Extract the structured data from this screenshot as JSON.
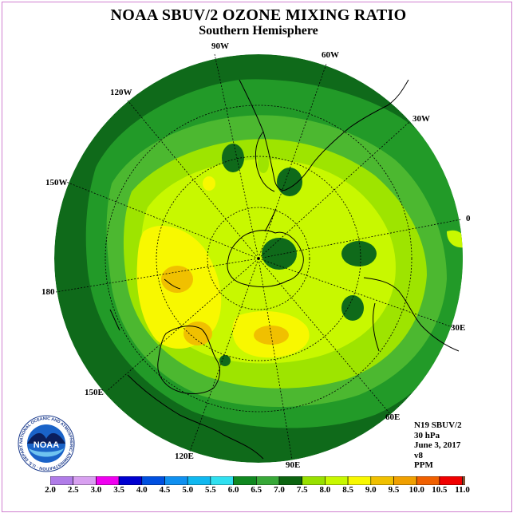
{
  "title": "NOAA SBUV/2 OZONE MIXING RATIO",
  "subtitle": "Southern Hemisphere",
  "longitude_labels": [
    "90W",
    "60W",
    "120W",
    "30W",
    "150W",
    "0",
    "180",
    "30E",
    "150E",
    "60E",
    "120E",
    "90E"
  ],
  "info": {
    "satellite": "N19 SBUV/2",
    "level": "30 hPa",
    "date": "June 3, 2017",
    "version": "v8",
    "units": "PPM"
  },
  "colorbar": {
    "ticks": [
      "2.0",
      "2.5",
      "3.0",
      "3.5",
      "4.0",
      "4.5",
      "5.0",
      "5.5",
      "6.0",
      "6.5",
      "7.0",
      "7.5",
      "8.0",
      "8.5",
      "9.0",
      "9.5",
      "10.0",
      "10.5",
      "11.0"
    ],
    "colors": [
      "#b07ce8",
      "#d8a0f0",
      "#f000f0",
      "#0000d0",
      "#0050e0",
      "#1090f0",
      "#10b8f0",
      "#30e0f0",
      "#108820",
      "#38a838",
      "#0c6410",
      "#98e000",
      "#c8f800",
      "#f8f800",
      "#f0c000",
      "#f0a000",
      "#f06000",
      "#f00000",
      "#805030"
    ]
  },
  "field_colors": {
    "dark_green": "#0f6a1a",
    "mid_green": "#229a28",
    "green": "#4cb830",
    "lime": "#9ee400",
    "light_lime": "#c8f800",
    "yellow": "#f8f800",
    "orange": "#f0c000"
  },
  "logo": {
    "text": "NOAA",
    "ring_text": "NATIONAL OCEANIC AND ATMOSPHERIC ADMINISTRATION · U.S. DEPARTMENT OF COMMERCE"
  }
}
